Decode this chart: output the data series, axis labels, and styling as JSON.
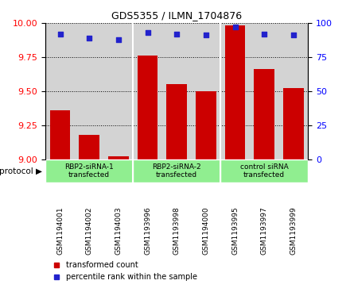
{
  "title": "GDS5355 / ILMN_1704876",
  "samples": [
    "GSM1194001",
    "GSM1194002",
    "GSM1194003",
    "GSM1193996",
    "GSM1193998",
    "GSM1194000",
    "GSM1193995",
    "GSM1193997",
    "GSM1193999"
  ],
  "red_values": [
    9.36,
    9.18,
    9.02,
    9.76,
    9.55,
    9.5,
    9.98,
    9.66,
    9.52
  ],
  "blue_values": [
    92,
    89,
    88,
    93,
    92,
    91,
    97,
    92,
    91
  ],
  "groups": [
    {
      "label": "RBP2-siRNA-1\ntransfected",
      "start": 0,
      "end": 3
    },
    {
      "label": "RBP2-siRNA-2\ntransfected",
      "start": 3,
      "end": 6
    },
    {
      "label": "control siRNA\ntransfected",
      "start": 6,
      "end": 9
    }
  ],
  "ylim_left": [
    9.0,
    10.0
  ],
  "ylim_right": [
    0,
    100
  ],
  "yticks_left": [
    9.0,
    9.25,
    9.5,
    9.75,
    10.0
  ],
  "yticks_right": [
    0,
    25,
    50,
    75,
    100
  ],
  "bar_color": "#cc0000",
  "dot_color": "#2222cc",
  "bg_color": "#d3d3d3",
  "group_color": "#90EE90",
  "legend_red": "transformed count",
  "legend_blue": "percentile rank within the sample",
  "protocol_label": "protocol"
}
